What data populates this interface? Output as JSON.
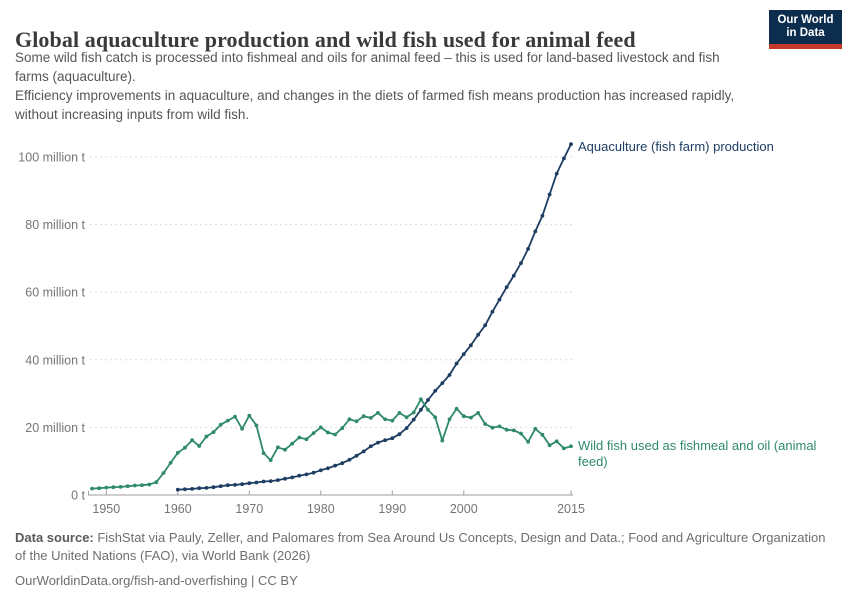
{
  "header": {
    "title": "Global aquaculture production and wild fish used for animal feed",
    "subtitle_1": "Some wild fish catch is processed into fishmeal and oils for animal feed – this is used for land-based livestock and fish farms (aquaculture).",
    "subtitle_2": "Efficiency improvements in aquaculture, and changes in the diets of farmed fish means production has increased rapidly, without increasing inputs from wild fish.",
    "logo": {
      "line1": "Our World",
      "line2": "in Data",
      "bg_color": "#0d2d4e",
      "bar_color": "#c5392b"
    }
  },
  "chart_data": {
    "type": "line",
    "title": "Global aquaculture production and wild fish used for animal feed",
    "unit": "million t",
    "grid": true,
    "legend_position": "end-of-line",
    "x_axis": {
      "min": 1948,
      "max": 2015,
      "ticks": [
        1950,
        1960,
        1970,
        1980,
        1990,
        2000,
        2015
      ]
    },
    "y_axis": {
      "min": 0,
      "max": 100,
      "ticks": [
        {
          "value": 0,
          "label": "0 t"
        },
        {
          "value": 20,
          "label": "20 million t"
        },
        {
          "value": 40,
          "label": "40 million t"
        },
        {
          "value": 60,
          "label": "60 million t"
        },
        {
          "value": 80,
          "label": "80 million t"
        },
        {
          "value": 100,
          "label": "100 million t"
        }
      ]
    },
    "colors": {
      "grid": "#dcdcdc",
      "axis": "#9e9e9e",
      "tick_text": "#757575"
    },
    "series": [
      {
        "name": "Aquaculture (fish farm) production",
        "color": "#1d3d63",
        "points": [
          [
            1960,
            1.6
          ],
          [
            1961,
            1.7
          ],
          [
            1962,
            1.8
          ],
          [
            1963,
            2.0
          ],
          [
            1964,
            2.1
          ],
          [
            1965,
            2.3
          ],
          [
            1966,
            2.6
          ],
          [
            1967,
            2.9
          ],
          [
            1968,
            3.0
          ],
          [
            1969,
            3.2
          ],
          [
            1970,
            3.5
          ],
          [
            1971,
            3.7
          ],
          [
            1972,
            4.0
          ],
          [
            1973,
            4.1
          ],
          [
            1974,
            4.4
          ],
          [
            1975,
            4.8
          ],
          [
            1976,
            5.2
          ],
          [
            1977,
            5.7
          ],
          [
            1978,
            6.1
          ],
          [
            1979,
            6.6
          ],
          [
            1980,
            7.3
          ],
          [
            1981,
            7.9
          ],
          [
            1982,
            8.7
          ],
          [
            1983,
            9.4
          ],
          [
            1984,
            10.4
          ],
          [
            1985,
            11.6
          ],
          [
            1986,
            12.9
          ],
          [
            1987,
            14.4
          ],
          [
            1988,
            15.5
          ],
          [
            1989,
            16.2
          ],
          [
            1990,
            16.8
          ],
          [
            1991,
            18.0
          ],
          [
            1992,
            19.8
          ],
          [
            1993,
            22.3
          ],
          [
            1994,
            25.2
          ],
          [
            1995,
            28.1
          ],
          [
            1996,
            30.8
          ],
          [
            1997,
            33.1
          ],
          [
            1998,
            35.5
          ],
          [
            1999,
            38.9
          ],
          [
            2000,
            41.7
          ],
          [
            2001,
            44.3
          ],
          [
            2002,
            47.4
          ],
          [
            2003,
            50.2
          ],
          [
            2004,
            54.2
          ],
          [
            2005,
            57.8
          ],
          [
            2006,
            61.5
          ],
          [
            2007,
            64.9
          ],
          [
            2008,
            68.6
          ],
          [
            2009,
            72.8
          ],
          [
            2010,
            78.0
          ],
          [
            2011,
            82.6
          ],
          [
            2012,
            88.9
          ],
          [
            2013,
            95.1
          ],
          [
            2014,
            99.6
          ],
          [
            2015,
            103.8
          ]
        ]
      },
      {
        "name": "Wild fish used as fishmeal and oil (animal feed)",
        "color": "#2f8a68",
        "points": [
          [
            1948,
            1.9
          ],
          [
            1949,
            2.0
          ],
          [
            1950,
            2.2
          ],
          [
            1951,
            2.3
          ],
          [
            1952,
            2.4
          ],
          [
            1953,
            2.6
          ],
          [
            1954,
            2.8
          ],
          [
            1955,
            2.9
          ],
          [
            1956,
            3.1
          ],
          [
            1957,
            3.8
          ],
          [
            1958,
            6.5
          ],
          [
            1959,
            9.5
          ],
          [
            1960,
            12.5
          ],
          [
            1961,
            14.0
          ],
          [
            1962,
            16.2
          ],
          [
            1963,
            14.5
          ],
          [
            1964,
            17.3
          ],
          [
            1965,
            18.6
          ],
          [
            1966,
            20.8
          ],
          [
            1967,
            22.0
          ],
          [
            1968,
            23.2
          ],
          [
            1969,
            19.6
          ],
          [
            1970,
            23.5
          ],
          [
            1971,
            20.6
          ],
          [
            1972,
            12.4
          ],
          [
            1973,
            10.3
          ],
          [
            1974,
            14.1
          ],
          [
            1975,
            13.4
          ],
          [
            1976,
            15.2
          ],
          [
            1977,
            17.0
          ],
          [
            1978,
            16.5
          ],
          [
            1979,
            18.3
          ],
          [
            1980,
            20.0
          ],
          [
            1981,
            18.5
          ],
          [
            1982,
            17.9
          ],
          [
            1983,
            19.8
          ],
          [
            1984,
            22.4
          ],
          [
            1985,
            21.8
          ],
          [
            1986,
            23.3
          ],
          [
            1987,
            22.8
          ],
          [
            1988,
            24.3
          ],
          [
            1989,
            22.4
          ],
          [
            1990,
            22.0
          ],
          [
            1991,
            24.3
          ],
          [
            1992,
            23.0
          ],
          [
            1993,
            24.4
          ],
          [
            1994,
            28.3
          ],
          [
            1995,
            25.2
          ],
          [
            1996,
            23.0
          ],
          [
            1997,
            16.1
          ],
          [
            1998,
            22.4
          ],
          [
            1999,
            25.5
          ],
          [
            2000,
            23.3
          ],
          [
            2001,
            22.9
          ],
          [
            2002,
            24.3
          ],
          [
            2003,
            21.0
          ],
          [
            2004,
            19.9
          ],
          [
            2005,
            20.3
          ],
          [
            2006,
            19.3
          ],
          [
            2007,
            19.1
          ],
          [
            2008,
            18.2
          ],
          [
            2009,
            15.7
          ],
          [
            2010,
            19.6
          ],
          [
            2011,
            17.8
          ],
          [
            2012,
            14.7
          ],
          [
            2013,
            15.9
          ],
          [
            2014,
            13.8
          ],
          [
            2015,
            14.4
          ]
        ]
      }
    ]
  },
  "footer": {
    "source_prefix": "Data source:",
    "source_text": " FishStat via Pauly, Zeller, and Palomares from Sea Around Us Concepts, Design and Data.; Food and Agriculture Organization of the United Nations (FAO), via World Bank (2026)",
    "license_line": "OurWorldinData.org/fish-and-overfishing | CC BY"
  }
}
